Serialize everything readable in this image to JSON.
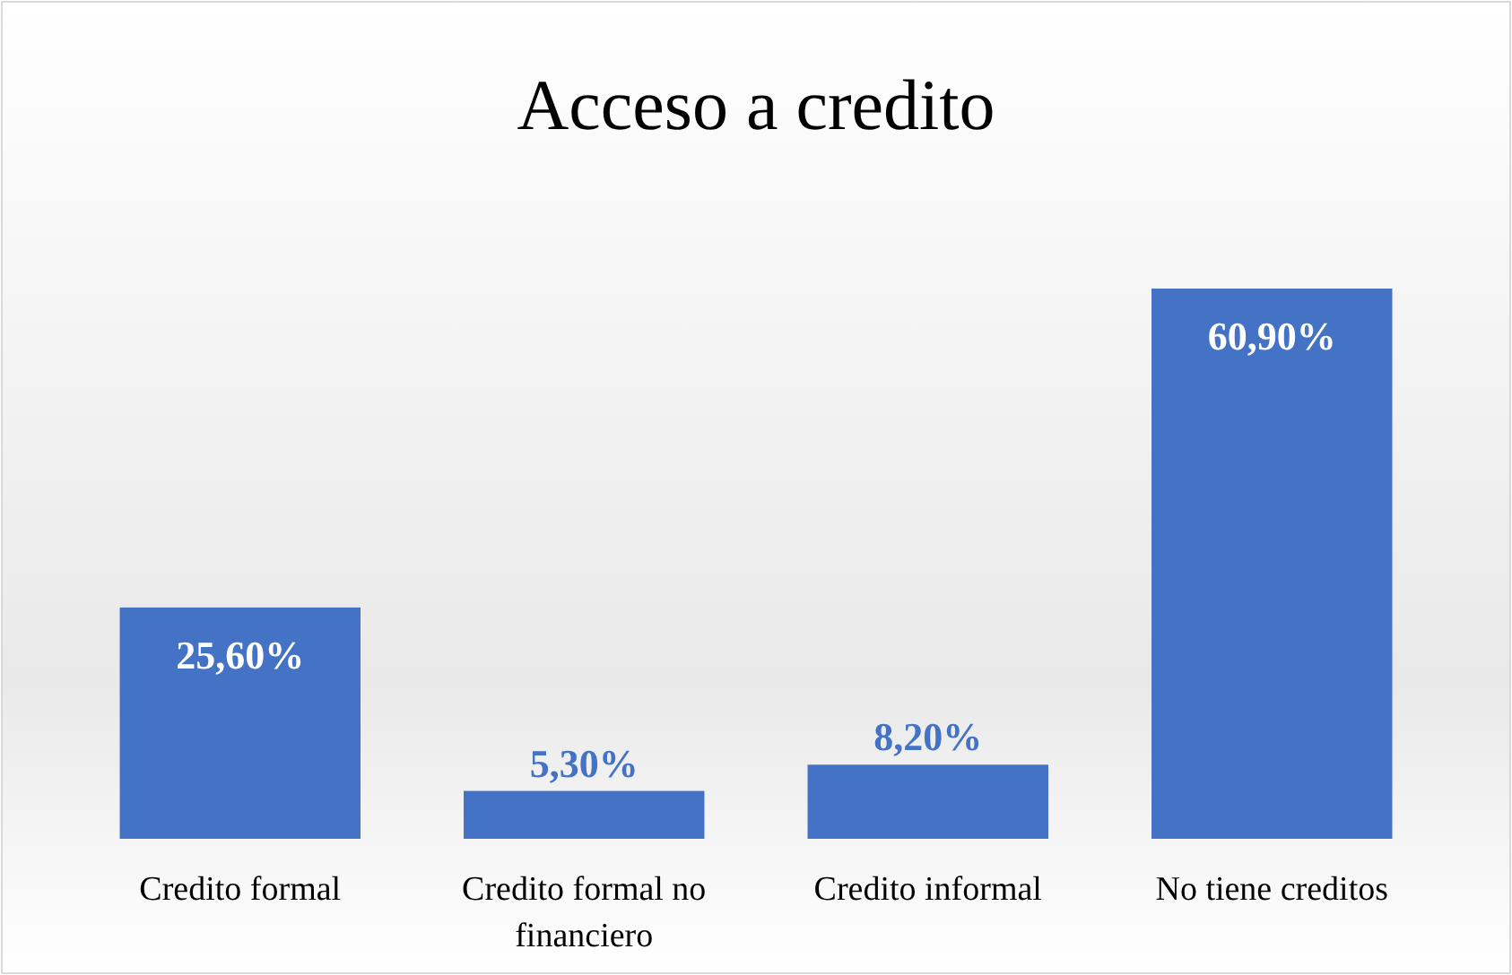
{
  "chart_data": {
    "type": "bar",
    "title": "Acceso a credito",
    "categories": [
      "Credito formal",
      "Credito formal no financiero",
      "Credito informal",
      "No tiene creditos"
    ],
    "values": [
      25.6,
      5.3,
      8.2,
      60.9
    ],
    "value_labels": [
      "25,60%",
      "5,30%",
      "8,20%",
      "60,90%"
    ],
    "color": "#4472c4",
    "grid": false
  }
}
